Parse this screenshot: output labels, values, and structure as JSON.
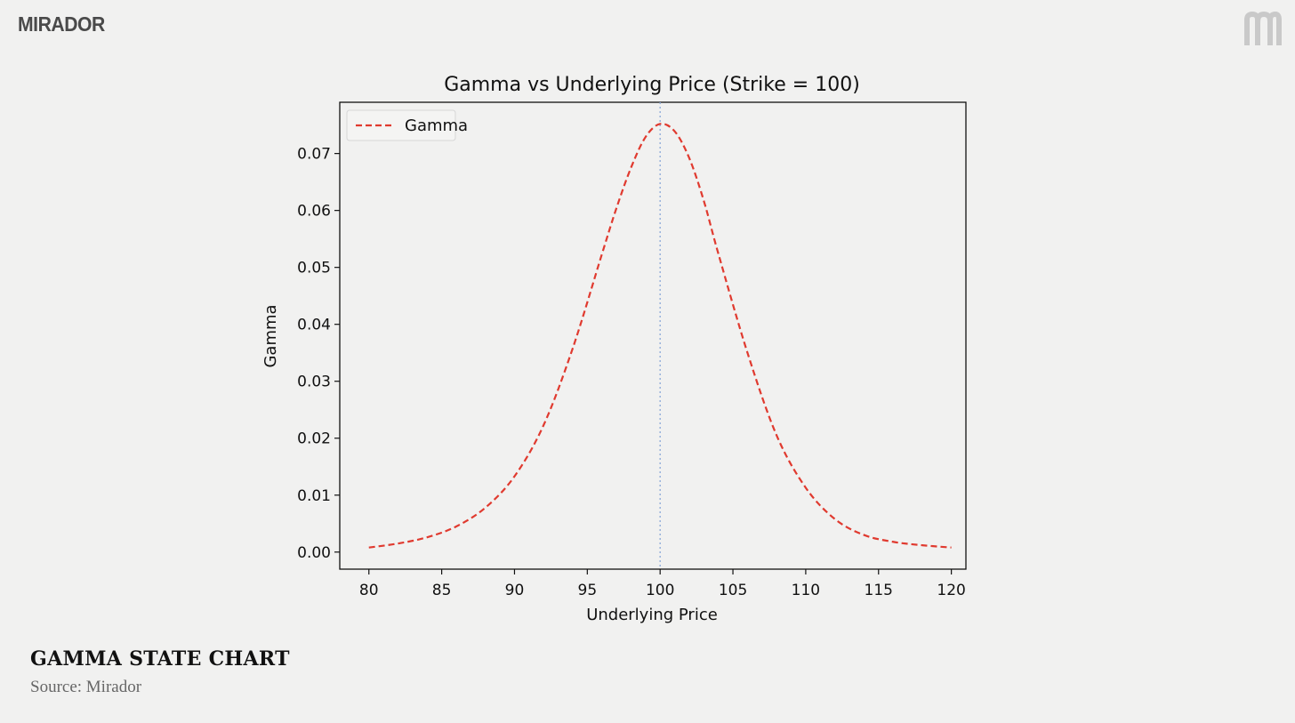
{
  "brand": {
    "name": "MIRADOR",
    "mark_icon": "m-monogram-icon"
  },
  "caption": {
    "title": "GAMMA STATE CHART",
    "source": "Source: Mirador"
  },
  "colors": {
    "gamma_line": "#e03a2f",
    "strike_line": "#8aa8d8",
    "axes": "#111111",
    "background": "#f1f1f0"
  },
  "chart_data": {
    "type": "line",
    "title": "Gamma vs Underlying Price (Strike = 100)",
    "xlabel": "Underlying Price",
    "ylabel": "Gamma",
    "xlim": [
      78,
      121
    ],
    "ylim": [
      -0.003,
      0.079
    ],
    "xticks": [
      80,
      85,
      90,
      95,
      100,
      105,
      110,
      115,
      120
    ],
    "yticks": [
      0.0,
      0.01,
      0.02,
      0.03,
      0.04,
      0.05,
      0.06,
      0.07
    ],
    "ytick_labels": [
      "0.00",
      "0.01",
      "0.02",
      "0.03",
      "0.04",
      "0.05",
      "0.06",
      "0.07"
    ],
    "grid": false,
    "legend": {
      "position": "top-left",
      "entries": [
        "Gamma"
      ]
    },
    "strike_line_x": 100,
    "series": [
      {
        "name": "Gamma",
        "style": "dashed",
        "x": [
          80,
          82,
          84,
          86,
          88,
          90,
          92,
          94,
          96,
          97,
          98,
          99,
          100,
          101,
          102,
          103,
          104,
          106,
          108,
          110,
          112,
          114,
          116,
          118,
          120
        ],
        "y": [
          0.0008,
          0.0015,
          0.0026,
          0.0045,
          0.0078,
          0.0133,
          0.0223,
          0.0358,
          0.0523,
          0.0604,
          0.0675,
          0.0729,
          0.0752,
          0.0739,
          0.0692,
          0.0617,
          0.0524,
          0.035,
          0.0205,
          0.0113,
          0.0058,
          0.003,
          0.0018,
          0.0012,
          0.0008
        ]
      }
    ]
  }
}
